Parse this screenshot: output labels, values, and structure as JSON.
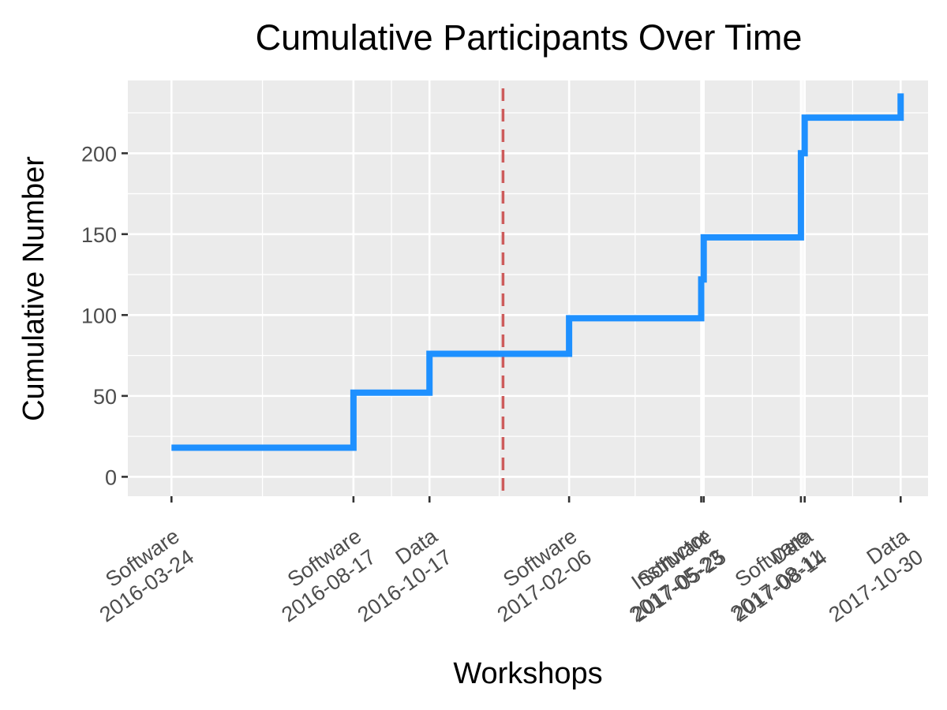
{
  "chart_data": {
    "type": "line",
    "step": true,
    "title": "Cumulative Participants Over Time",
    "xlabel": "Workshops",
    "ylabel": "Cumulative Number",
    "ylim": [
      -12,
      245
    ],
    "yticks": [
      0,
      50,
      100,
      150,
      200
    ],
    "xlim": [
      "2016-02-18",
      "2017-11-21"
    ],
    "grid": true,
    "legend": "none",
    "workshops": [
      {
        "type": "Software",
        "date": "2016-03-24"
      },
      {
        "type": "Software",
        "date": "2016-08-17"
      },
      {
        "type": "Data",
        "date": "2016-10-17"
      },
      {
        "type": "Software",
        "date": "2017-02-06"
      },
      {
        "type": "Instructor",
        "date": "2017-05-23"
      },
      {
        "type": "Software",
        "date": "2017-05-25"
      },
      {
        "type": "Software",
        "date": "2017-08-11"
      },
      {
        "type": "Data",
        "date": "2017-08-14"
      },
      {
        "type": "Data",
        "date": "2017-10-30"
      }
    ],
    "x_tick_dates": [
      "2016-03-24",
      "2016-08-17",
      "2016-10-17",
      "2017-02-06",
      "2017-05-23",
      "2017-05-25",
      "2017-08-11",
      "2017-08-14",
      "2017-10-30"
    ],
    "x_tick_lines": [
      [
        "Software",
        "2016-03-24"
      ],
      [
        "Software",
        "2016-08-17"
      ],
      [
        "Data",
        "2016-10-17"
      ],
      [
        "Software",
        "2017-02-06"
      ],
      [
        "Instructor",
        "2017-05-23"
      ],
      [
        "Software",
        "2017-05-25"
      ],
      [
        "Software",
        "2017-08-11"
      ],
      [
        "Data",
        "2017-08-14"
      ],
      [
        "Data",
        "2017-10-30"
      ]
    ],
    "series": [
      {
        "color": "#1E90FF",
        "x": [
          "2016-03-24",
          "2016-08-17",
          "2016-10-17",
          "2017-02-06",
          "2017-05-23",
          "2017-05-25",
          "2017-08-11",
          "2017-08-14",
          "2017-10-30"
        ],
        "values": [
          18,
          52,
          76,
          98,
          122,
          148,
          200,
          222,
          237
        ]
      }
    ],
    "reference_line": {
      "date": "2016-12-15",
      "color": "#CD5C5C",
      "style": "dashed"
    }
  }
}
